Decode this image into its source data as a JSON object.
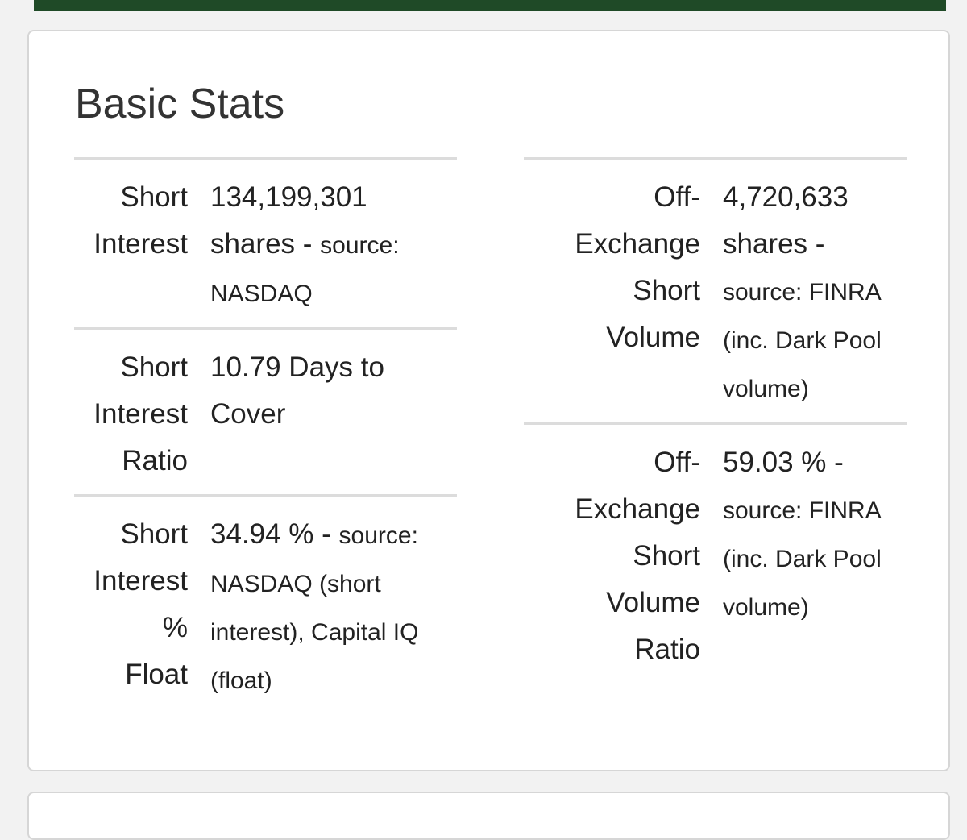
{
  "card": {
    "title": "Basic Stats"
  },
  "left": [
    {
      "label_lines": [
        "Short",
        "Interest"
      ],
      "value_main": "134,199,301 shares - ",
      "value_small": "source: NASDAQ"
    },
    {
      "label_lines": [
        "Short",
        "Interest",
        "Ratio"
      ],
      "value_main": "10.79 Days to Cover",
      "value_small": ""
    },
    {
      "label_lines": [
        "Short",
        "Interest",
        "%",
        "Float"
      ],
      "value_main": "34.94 % - ",
      "value_small": "source: NASDAQ (short interest), Capital IQ (float)"
    }
  ],
  "right": [
    {
      "label_lines": [
        "Off-",
        "Exchange",
        "Short",
        "Volume"
      ],
      "value_main": "4,720,633 shares - ",
      "value_small": "source: FINRA (inc. Dark Pool volume)"
    },
    {
      "label_lines": [
        "Off-",
        "Exchange",
        "Short",
        "Volume",
        "Ratio"
      ],
      "value_main": "59.03 % - ",
      "value_small": "source: FINRA (inc. Dark Pool volume)"
    }
  ]
}
